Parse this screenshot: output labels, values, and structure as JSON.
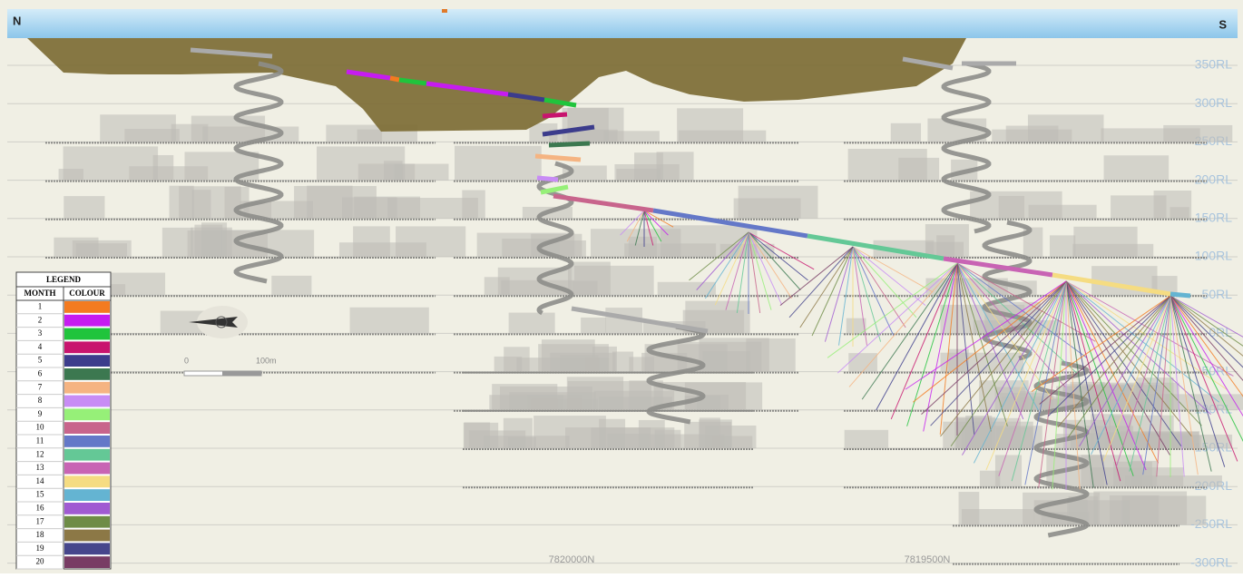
{
  "header": {
    "north": "N",
    "south": "S"
  },
  "levels": [
    "350RL",
    "300RL",
    "250RL",
    "200RL",
    "150RL",
    "100RL",
    "50RL",
    "0RL",
    "-50RL",
    "-100RL",
    "-150RL",
    "-200RL",
    "-250RL",
    "-300RL"
  ],
  "legend": {
    "title": "LEGEND",
    "headers": [
      "MONTH",
      "COLOUR"
    ],
    "rows": [
      {
        "month": "1",
        "colour": "#f47b20"
      },
      {
        "month": "2",
        "colour": "#c61cf0"
      },
      {
        "month": "3",
        "colour": "#20c43c"
      },
      {
        "month": "4",
        "colour": "#c8146e"
      },
      {
        "month": "5",
        "colour": "#3c3c8c"
      },
      {
        "month": "6",
        "colour": "#3c7850"
      },
      {
        "month": "7",
        "colour": "#f5b482"
      },
      {
        "month": "8",
        "colour": "#c88cf5"
      },
      {
        "month": "9",
        "colour": "#96f078"
      },
      {
        "month": "10",
        "colour": "#c8648c"
      },
      {
        "month": "11",
        "colour": "#6478c8"
      },
      {
        "month": "12",
        "colour": "#64c896"
      },
      {
        "month": "13",
        "colour": "#c864b4"
      },
      {
        "month": "14",
        "colour": "#f5dc82"
      },
      {
        "month": "15",
        "colour": "#64b4d2"
      },
      {
        "month": "16",
        "colour": "#a05ad2"
      },
      {
        "month": "17",
        "colour": "#6e8c46"
      },
      {
        "month": "18",
        "colour": "#8c7846"
      },
      {
        "month": "19",
        "colour": "#46468c"
      },
      {
        "month": "20",
        "colour": "#783c64"
      }
    ]
  },
  "scale_bar": {
    "start": "0",
    "end": "100m"
  },
  "northings": [
    "7820000N",
    "7819500N"
  ]
}
